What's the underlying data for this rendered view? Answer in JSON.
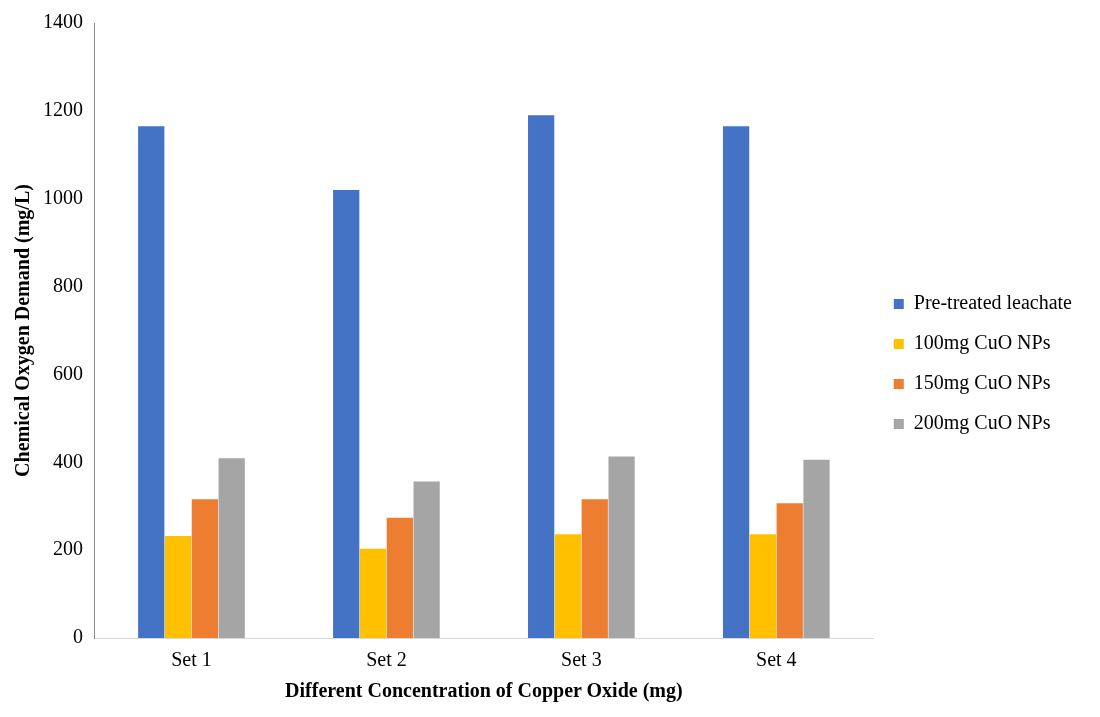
{
  "chart_data": {
    "type": "bar",
    "xlabel": "Different Concentration of Copper Oxide (mg)",
    "ylabel": "Chemical Oxygen Demand (mg/L)",
    "categories": [
      "Set 1",
      "Set 2",
      "Set 3",
      "Set 4"
    ],
    "series": [
      {
        "name": "Pre-treated leachate",
        "color": "#4472c4",
        "values": [
          1165,
          1020,
          1190,
          1165
        ]
      },
      {
        "name": "100mg CuO NPs",
        "color": "#ffc000",
        "values": [
          232,
          203,
          236,
          236
        ]
      },
      {
        "name": "150mg CuO NPs",
        "color": "#ed7d31",
        "values": [
          316,
          274,
          316,
          307
        ]
      },
      {
        "name": "200mg CuO NPs",
        "color": "#a5a5a5",
        "values": [
          409,
          356,
          413,
          406
        ]
      }
    ],
    "ylim": [
      0,
      1400
    ],
    "yticks": [
      0,
      200,
      400,
      600,
      800,
      1000,
      1200,
      1400
    ],
    "grid": false,
    "legend": "right"
  }
}
